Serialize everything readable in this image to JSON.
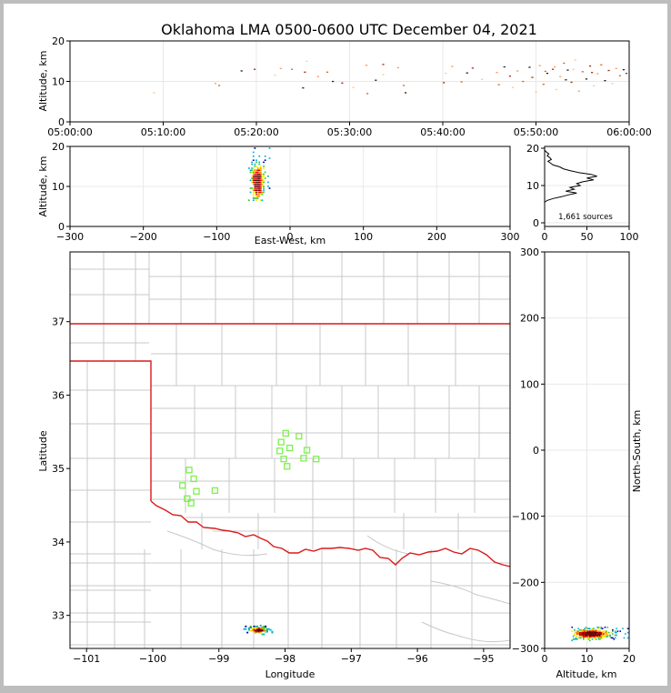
{
  "chart_data": [
    {
      "type": "scatter",
      "panel": "altitude-time",
      "title": "Oklahoma LMA 0500-0600 UTC December 04, 2021",
      "xlabel": "",
      "ylabel": "Altitude, km",
      "x_ticks": [
        "05:00:00",
        "05:10:00",
        "05:20:00",
        "05:30:00",
        "05:40:00",
        "05:50:00",
        "06:00:00"
      ],
      "xlim_minutes": [
        0,
        60
      ],
      "ylim": [
        0,
        20
      ],
      "y_ticks": [
        0,
        10,
        20
      ],
      "points_min_km": [
        [
          9.0,
          7.2
        ],
        [
          15.6,
          9.5
        ],
        [
          16.0,
          9.0
        ],
        [
          18.4,
          12.6
        ],
        [
          19.8,
          13.0
        ],
        [
          22.0,
          11.5
        ],
        [
          22.6,
          13.2
        ],
        [
          23.8,
          13.0
        ],
        [
          25.0,
          8.4
        ],
        [
          25.2,
          12.3
        ],
        [
          25.4,
          15.0
        ],
        [
          26.6,
          11.2
        ],
        [
          27.6,
          12.3
        ],
        [
          28.2,
          10.0
        ],
        [
          29.2,
          9.6
        ],
        [
          30.4,
          8.5
        ],
        [
          31.8,
          14.0
        ],
        [
          31.9,
          7.0
        ],
        [
          32.8,
          10.3
        ],
        [
          33.6,
          14.2
        ],
        [
          33.6,
          11.7
        ],
        [
          35.2,
          13.4
        ],
        [
          35.8,
          9.0
        ],
        [
          36.0,
          7.2
        ],
        [
          40.1,
          9.7
        ],
        [
          40.3,
          12.0
        ],
        [
          41.0,
          13.7
        ],
        [
          42.0,
          9.9
        ],
        [
          42.6,
          12.1
        ],
        [
          43.2,
          13.3
        ],
        [
          44.2,
          10.5
        ],
        [
          45.8,
          12.2
        ],
        [
          46.0,
          9.2
        ],
        [
          46.6,
          13.6
        ],
        [
          47.2,
          11.3
        ],
        [
          47.5,
          8.5
        ],
        [
          48.0,
          12.6
        ],
        [
          48.6,
          10.0
        ],
        [
          49.3,
          13.5
        ],
        [
          49.6,
          11.0
        ],
        [
          50.0,
          7.4
        ],
        [
          50.4,
          13.9
        ],
        [
          50.8,
          9.3
        ],
        [
          51.2,
          12.0
        ],
        [
          51.8,
          13.0
        ],
        [
          52.2,
          8.0
        ],
        [
          52.6,
          11.2
        ],
        [
          53.0,
          14.5
        ],
        [
          53.4,
          12.8
        ],
        [
          53.8,
          9.8
        ],
        [
          54.2,
          15.3
        ],
        [
          54.6,
          7.6
        ],
        [
          55.0,
          12.4
        ],
        [
          55.4,
          10.6
        ],
        [
          55.8,
          13.8
        ],
        [
          56.2,
          8.9
        ],
        [
          56.6,
          11.9
        ],
        [
          57.0,
          14.1
        ],
        [
          57.4,
          10.2
        ],
        [
          57.8,
          12.7
        ],
        [
          58.2,
          9.5
        ],
        [
          58.6,
          13.2
        ],
        [
          59.0,
          11.4
        ],
        [
          59.4,
          12.9
        ],
        [
          59.7,
          12.0
        ],
        [
          54.0,
          13.0
        ],
        [
          52.0,
          13.6
        ],
        [
          51.0,
          12.5
        ],
        [
          53.2,
          10.4
        ],
        [
          56.0,
          12.2
        ]
      ]
    },
    {
      "type": "heatmap",
      "panel": "altitude-eastwest",
      "xlabel": "East-West, km",
      "ylabel": "Altitude, km",
      "xlim": [
        -300,
        300
      ],
      "x_ticks": [
        -300,
        -200,
        -100,
        0,
        100,
        200,
        300
      ],
      "ylim": [
        0,
        20
      ],
      "y_ticks": [
        0,
        10,
        20
      ],
      "cluster": {
        "x_center": -42,
        "x_halfwidth": 14,
        "y_min": 6.5,
        "y_max": 20
      }
    },
    {
      "type": "line",
      "panel": "altitude-histogram",
      "xlim": [
        0,
        100
      ],
      "x_ticks": [
        0,
        50,
        100
      ],
      "ylim": [
        0,
        20
      ],
      "y_ticks": [
        0,
        10,
        20
      ],
      "annotation": "1,661 sources",
      "points_count_km": [
        [
          0,
          20.0
        ],
        [
          0,
          19.5
        ],
        [
          2,
          19.0
        ],
        [
          5,
          18.5
        ],
        [
          3,
          18.0
        ],
        [
          6,
          17.5
        ],
        [
          8,
          17.0
        ],
        [
          4,
          16.5
        ],
        [
          7,
          16.0
        ],
        [
          10,
          15.5
        ],
        [
          18,
          15.0
        ],
        [
          22,
          14.5
        ],
        [
          30,
          14.0
        ],
        [
          40,
          13.5
        ],
        [
          55,
          13.0
        ],
        [
          62,
          12.5
        ],
        [
          50,
          12.0
        ],
        [
          58,
          11.5
        ],
        [
          45,
          11.0
        ],
        [
          38,
          10.5
        ],
        [
          42,
          10.0
        ],
        [
          30,
          9.5
        ],
        [
          35,
          9.0
        ],
        [
          25,
          8.5
        ],
        [
          38,
          8.0
        ],
        [
          28,
          7.5
        ],
        [
          20,
          7.0
        ],
        [
          10,
          6.5
        ],
        [
          3,
          6.0
        ],
        [
          0,
          5.5
        ]
      ]
    },
    {
      "type": "scatter",
      "panel": "plan-view-map",
      "xlabel": "Longitude",
      "ylabel": "Latitude",
      "xlim": [
        -101.25,
        -94.6
      ],
      "x_ticks": [
        -101,
        -100,
        -99,
        -98,
        -97,
        -96,
        -95
      ],
      "ylim": [
        32.55,
        37.95
      ],
      "y_ticks": [
        33,
        34,
        35,
        36,
        37
      ],
      "stations": [
        [
          -97.99,
          35.48
        ],
        [
          -97.79,
          35.44
        ],
        [
          -98.06,
          35.36
        ],
        [
          -97.93,
          35.28
        ],
        [
          -98.08,
          35.24
        ],
        [
          -97.67,
          35.25
        ],
        [
          -98.02,
          35.13
        ],
        [
          -97.72,
          35.14
        ],
        [
          -97.53,
          35.13
        ],
        [
          -97.97,
          35.03
        ],
        [
          -99.45,
          34.98
        ],
        [
          -99.38,
          34.86
        ],
        [
          -99.55,
          34.77
        ],
        [
          -99.34,
          34.69
        ],
        [
          -99.06,
          34.7
        ],
        [
          -99.48,
          34.59
        ],
        [
          -99.42,
          34.53
        ]
      ],
      "source_cluster": {
        "lon_center": -98.4,
        "lon_halfwidth": 0.22,
        "lat_center": 32.8,
        "lat_halfwidth": 0.07
      }
    },
    {
      "type": "heatmap",
      "panel": "northsouth-altitude",
      "xlabel": "Altitude, km",
      "ylabel": "North-South, km",
      "xlim": [
        0,
        20
      ],
      "x_ticks": [
        0,
        10,
        20
      ],
      "ylim": [
        -300,
        300
      ],
      "y_ticks": [
        -300,
        -200,
        -100,
        0,
        100,
        200,
        300
      ],
      "cluster": {
        "x_min": 6.5,
        "x_max": 20,
        "y_center": -278,
        "y_halfwidth": 10
      }
    }
  ],
  "colors": {
    "border": "#d81a1a",
    "counties": "#c8c8c8",
    "stations": "#7fef4f",
    "grid": "#e8e8e8",
    "density": [
      "#0000b0",
      "#00b0d0",
      "#40c040",
      "#f0f000",
      "#ff9000",
      "#e00000",
      "#600000"
    ]
  }
}
